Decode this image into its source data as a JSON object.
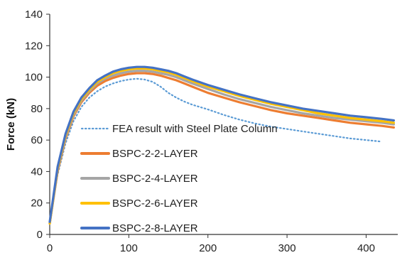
{
  "chart_data": {
    "type": "line",
    "title": "",
    "xlabel": "",
    "ylabel": "Force (kN)",
    "xlim": [
      0,
      440
    ],
    "ylim": [
      0,
      140
    ],
    "x_ticks": [
      0,
      100,
      200,
      300,
      400
    ],
    "y_ticks": [
      0,
      20,
      40,
      60,
      80,
      100,
      120,
      140
    ],
    "grid": false,
    "legend_placement": "center-left",
    "series": [
      {
        "name": "FEA result with Steel Plate Column",
        "color": "#5B9BD5",
        "style": "dotted",
        "x": [
          0,
          10,
          20,
          30,
          40,
          50,
          60,
          70,
          80,
          90,
          100,
          110,
          120,
          130,
          140,
          150,
          160,
          170,
          180,
          200,
          220,
          240,
          260,
          280,
          300,
          320,
          340,
          360,
          380,
          400,
          420
        ],
        "y": [
          8,
          38,
          58,
          72,
          81,
          87,
          91,
          94,
          96,
          97.5,
          98.5,
          99,
          98.5,
          97,
          94,
          90,
          87,
          84.5,
          82.5,
          79.5,
          76,
          73,
          70.5,
          68.5,
          67,
          65.5,
          64,
          62.5,
          61,
          60,
          59
        ]
      },
      {
        "name": "BSPC-2-2-LAYER",
        "color": "#ED7D31",
        "style": "solid",
        "x": [
          0,
          10,
          20,
          30,
          40,
          50,
          60,
          70,
          80,
          90,
          100,
          110,
          120,
          130,
          140,
          150,
          160,
          170,
          180,
          200,
          220,
          240,
          260,
          280,
          300,
          320,
          340,
          360,
          380,
          400,
          420,
          435
        ],
        "y": [
          7,
          40,
          61,
          75,
          84,
          90,
          94.5,
          97.5,
          99.5,
          101,
          102,
          102.5,
          102.5,
          102,
          101,
          99.5,
          98,
          96,
          94,
          90,
          87,
          84,
          81.5,
          79,
          77,
          75.5,
          74,
          72.5,
          71,
          70,
          69,
          68
        ]
      },
      {
        "name": "BSPC-2-4-LAYER",
        "color": "#A5A5A5",
        "style": "solid",
        "x": [
          0,
          10,
          20,
          30,
          40,
          50,
          60,
          70,
          80,
          90,
          100,
          110,
          120,
          130,
          140,
          150,
          160,
          170,
          180,
          200,
          220,
          240,
          260,
          280,
          300,
          320,
          340,
          360,
          380,
          400,
          420,
          435
        ],
        "y": [
          7,
          41,
          62,
          76,
          85,
          91,
          96,
          99,
          101,
          102.5,
          103.5,
          104,
          104,
          103.5,
          102.5,
          101.5,
          100,
          98,
          96,
          92.5,
          89,
          86,
          83.5,
          81,
          79,
          77,
          75.5,
          74,
          73,
          72,
          71,
          70
        ]
      },
      {
        "name": "BSPC-2-6-LAYER",
        "color": "#FFC000",
        "style": "solid",
        "x": [
          0,
          10,
          20,
          30,
          40,
          50,
          60,
          70,
          80,
          90,
          100,
          110,
          120,
          130,
          140,
          150,
          160,
          170,
          180,
          200,
          220,
          240,
          260,
          280,
          300,
          320,
          340,
          360,
          380,
          400,
          420,
          435
        ],
        "y": [
          7,
          42,
          63,
          77,
          86,
          92,
          97,
          100,
          102.5,
          104,
          105,
          105.5,
          105.5,
          105,
          104,
          103,
          101.5,
          99.5,
          97.5,
          94,
          91,
          88,
          85.5,
          83,
          81,
          79,
          77,
          75.5,
          74,
          73,
          72,
          71
        ]
      },
      {
        "name": "BSPC-2-8-LAYER",
        "color": "#4472C4",
        "style": "solid",
        "x": [
          0,
          10,
          20,
          30,
          40,
          50,
          60,
          70,
          80,
          90,
          100,
          110,
          120,
          130,
          140,
          150,
          160,
          170,
          180,
          200,
          220,
          240,
          260,
          280,
          300,
          320,
          340,
          360,
          380,
          400,
          420,
          435
        ],
        "y": [
          8,
          43,
          64,
          78,
          87,
          93,
          98,
          101,
          103.5,
          105,
          106,
          106.5,
          106.5,
          106,
          105,
          104,
          102.5,
          100.5,
          98.5,
          95,
          92,
          89,
          86.5,
          84,
          82,
          80,
          78.5,
          77,
          75.5,
          74.5,
          73.5,
          72.5
        ]
      }
    ]
  }
}
